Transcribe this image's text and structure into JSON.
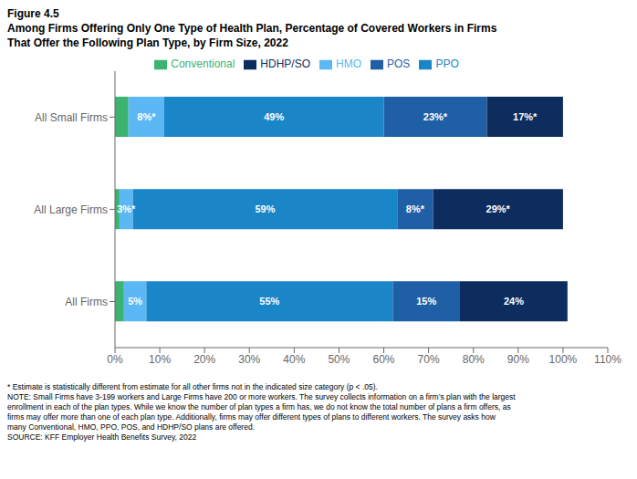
{
  "chart_data": {
    "type": "bar",
    "orientation": "horizontal",
    "stacked": true,
    "data_labels": true,
    "grid": false,
    "legend": "top",
    "subtitle": "Figure 4.5",
    "title": [
      "Among Firms Offering Only One Type of Health Plan, Percentage of Covered Workers in Firms",
      "That Offer the Following Plan Type, by Firm Size, 2022"
    ],
    "categories": [
      "All Small Firms",
      "All Large Firms",
      "All Firms"
    ],
    "series": [
      {
        "name": "Conventional",
        "color": "#3cb371",
        "values": [
          3,
          1,
          2
        ],
        "value_labels": [
          null,
          null,
          null
        ]
      },
      {
        "name": "HMO",
        "color": "#5bb8f5",
        "values": [
          8,
          3,
          5
        ],
        "value_labels": [
          "8%*",
          "3%*",
          "5%"
        ]
      },
      {
        "name": "PPO",
        "color": "#1a86c8",
        "values": [
          49,
          59,
          55
        ],
        "value_labels": [
          "49%",
          "59%",
          "55%"
        ]
      },
      {
        "name": "POS",
        "color": "#1f5fa6",
        "values": [
          23,
          8,
          15
        ],
        "value_labels": [
          "23%*",
          "8%*",
          "15%"
        ]
      },
      {
        "name": "HDHP/SO",
        "color": "#0d2d5e",
        "values": [
          17,
          29,
          24
        ],
        "value_labels": [
          "17%*",
          "29%*",
          "24%"
        ]
      }
    ],
    "xlim": [
      0,
      110
    ],
    "xticks": [
      {
        "value": 0,
        "label": "0%"
      },
      {
        "value": 10,
        "label": "10%"
      },
      {
        "value": 20,
        "label": "20%"
      },
      {
        "value": 30,
        "label": "30%"
      },
      {
        "value": 40,
        "label": "40%"
      },
      {
        "value": 50,
        "label": "50%"
      },
      {
        "value": 60,
        "label": "60%"
      },
      {
        "value": 70,
        "label": "70%"
      },
      {
        "value": 80,
        "label": "80%"
      },
      {
        "value": 90,
        "label": "90%"
      },
      {
        "value": 100,
        "label": "100%"
      },
      {
        "value": 110,
        "label": "110%"
      }
    ],
    "annotations": [
      "* Estimate is statistically different from estimate for all other firms not in the indicated size category (p < .05).",
      "NOTE: Small Firms have 3-199 workers and Large Firms have 200 or more workers. The survey collects information on a firm’s plan with the largest",
      "enrollment in each of the plan types. While we know the number of plan types a firm has, we do not know the total number of plans a firm offers, as",
      "firms may offer more than one of each plan type. Additionally, firms may offer different types of plans to different workers. The survey asks how",
      "many Conventional, HMO, PPO, POS, and HDHP/SO plans are offered.",
      "SOURCE: KFF Employer Health Benefits Survey, 2022"
    ]
  }
}
